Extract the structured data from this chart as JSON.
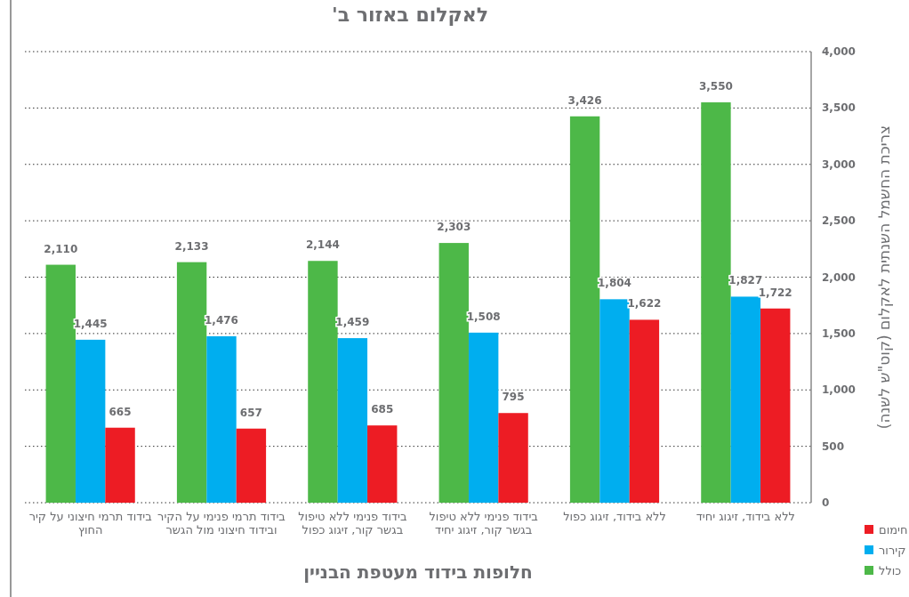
{
  "chart_data": {
    "type": "bar",
    "title": "לאקלום באזור ב'",
    "xlabel": "חלופות בידוד מעטפת הבניין",
    "ylabel": "צריכת החשמל השנתית לאקלום (קוט\"ש לשנה)",
    "categories": [
      "בידוד תרמי חיצוני על קיר החוץ",
      "בידוד תרמי פנימי על הקיר ובידוד חיצוני מול הגשר",
      "בידוד פנימי ללא טיפול בגשר קור, זיגוג כפול",
      "בידוד פנימי ללא טיפול בגשר קור, זיגוג יחיד",
      "ללא בידוד, זיגוג כפול",
      "ללא בידוד, זיגוג יחיד"
    ],
    "series": [
      {
        "name": "כולל",
        "color": "#4db848",
        "values": [
          2110,
          2133,
          2144,
          2303,
          3426,
          3550
        ],
        "value_labels": [
          "2,110",
          "2,133",
          "2,144",
          "2,303",
          "3,426",
          "3,550"
        ]
      },
      {
        "name": "קירור",
        "color": "#00aeef",
        "values": [
          1445,
          1476,
          1459,
          1508,
          1804,
          1827
        ],
        "value_labels": [
          "1,445",
          "1,476",
          "1,459",
          "1,508",
          "1,804",
          "1,827"
        ]
      },
      {
        "name": "חימום",
        "color": "#ed1c24",
        "values": [
          665,
          657,
          685,
          795,
          1622,
          1722
        ],
        "value_labels": [
          "665",
          "657",
          "685",
          "795",
          "1,622",
          "1,722"
        ]
      }
    ],
    "ylim": [
      0,
      4000
    ],
    "yticks": [
      0,
      {
        "value": 500,
        "label": "500"
      },
      {
        "value": 1000,
        "label": "1,000"
      },
      {
        "value": 1500,
        "label": "1,500"
      },
      {
        "value": 2000,
        "label": "2,000"
      },
      {
        "value": 2500,
        "label": "2,500"
      },
      {
        "value": 3000,
        "label": "3,000"
      },
      {
        "value": 3500,
        "label": "3,500"
      },
      {
        "value": 4000,
        "label": "4,000"
      }
    ],
    "grid": "y",
    "legend": "bottom right"
  }
}
